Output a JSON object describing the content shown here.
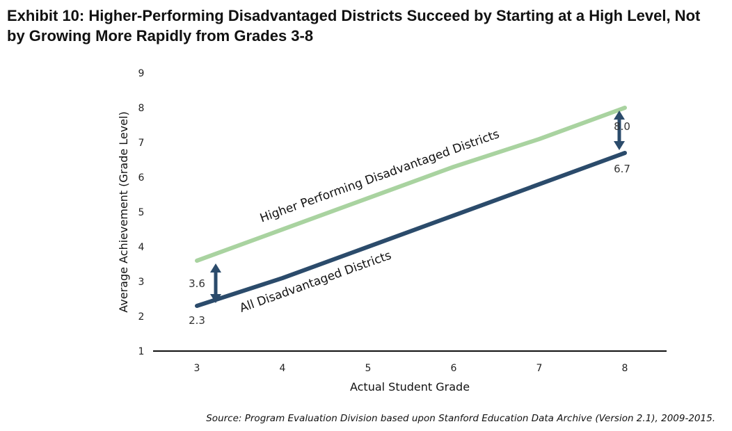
{
  "title": {
    "line1": "Exhibit 10: Higher-Performing Disadvantaged Districts Succeed by Starting at a High Level, Not",
    "line2": "by Growing More Rapidly from Grades 3-8"
  },
  "source": "Source: Program Evaluation Division based upon Stanford Education Data Archive (Version 2.1), 2009-2015.",
  "colors": {
    "higher_series": "#a9d3a0",
    "all_series": "#2b4b6b",
    "arrow": "#2b4b6b",
    "axis": "#111111"
  },
  "chart_data": {
    "type": "line",
    "xlabel": "Actual Student Grade",
    "ylabel": "Average Achievement (Grade Level)",
    "x": [
      3,
      4,
      5,
      6,
      7,
      8
    ],
    "xticks": [
      "3",
      "4",
      "5",
      "6",
      "7",
      "8"
    ],
    "yticks": [
      "1",
      "2",
      "3",
      "4",
      "5",
      "6",
      "7",
      "8",
      "9"
    ],
    "ylim": [
      1,
      9
    ],
    "grid": false,
    "series": [
      {
        "name": "Higher Performing Disadvantaged Districts",
        "values": [
          3.6,
          4.5,
          5.4,
          6.3,
          7.1,
          8.0
        ],
        "color": "#a9d3a0"
      },
      {
        "name": "All Disadvantaged Districts",
        "values": [
          2.3,
          3.1,
          4.0,
          4.9,
          5.8,
          6.7
        ],
        "color": "#2b4b6b"
      }
    ],
    "annotations": [
      {
        "x": 3,
        "value": 3.6,
        "text": "3.6"
      },
      {
        "x": 3,
        "value": 2.3,
        "text": "2.3"
      },
      {
        "x": 8,
        "value": 8.0,
        "text": "8.0"
      },
      {
        "x": 8,
        "value": 6.7,
        "text": "6.7"
      }
    ],
    "arrows": [
      {
        "x": 3,
        "from": 2.3,
        "to": 3.6
      },
      {
        "x": 8,
        "from": 6.7,
        "to": 8.0
      }
    ]
  }
}
